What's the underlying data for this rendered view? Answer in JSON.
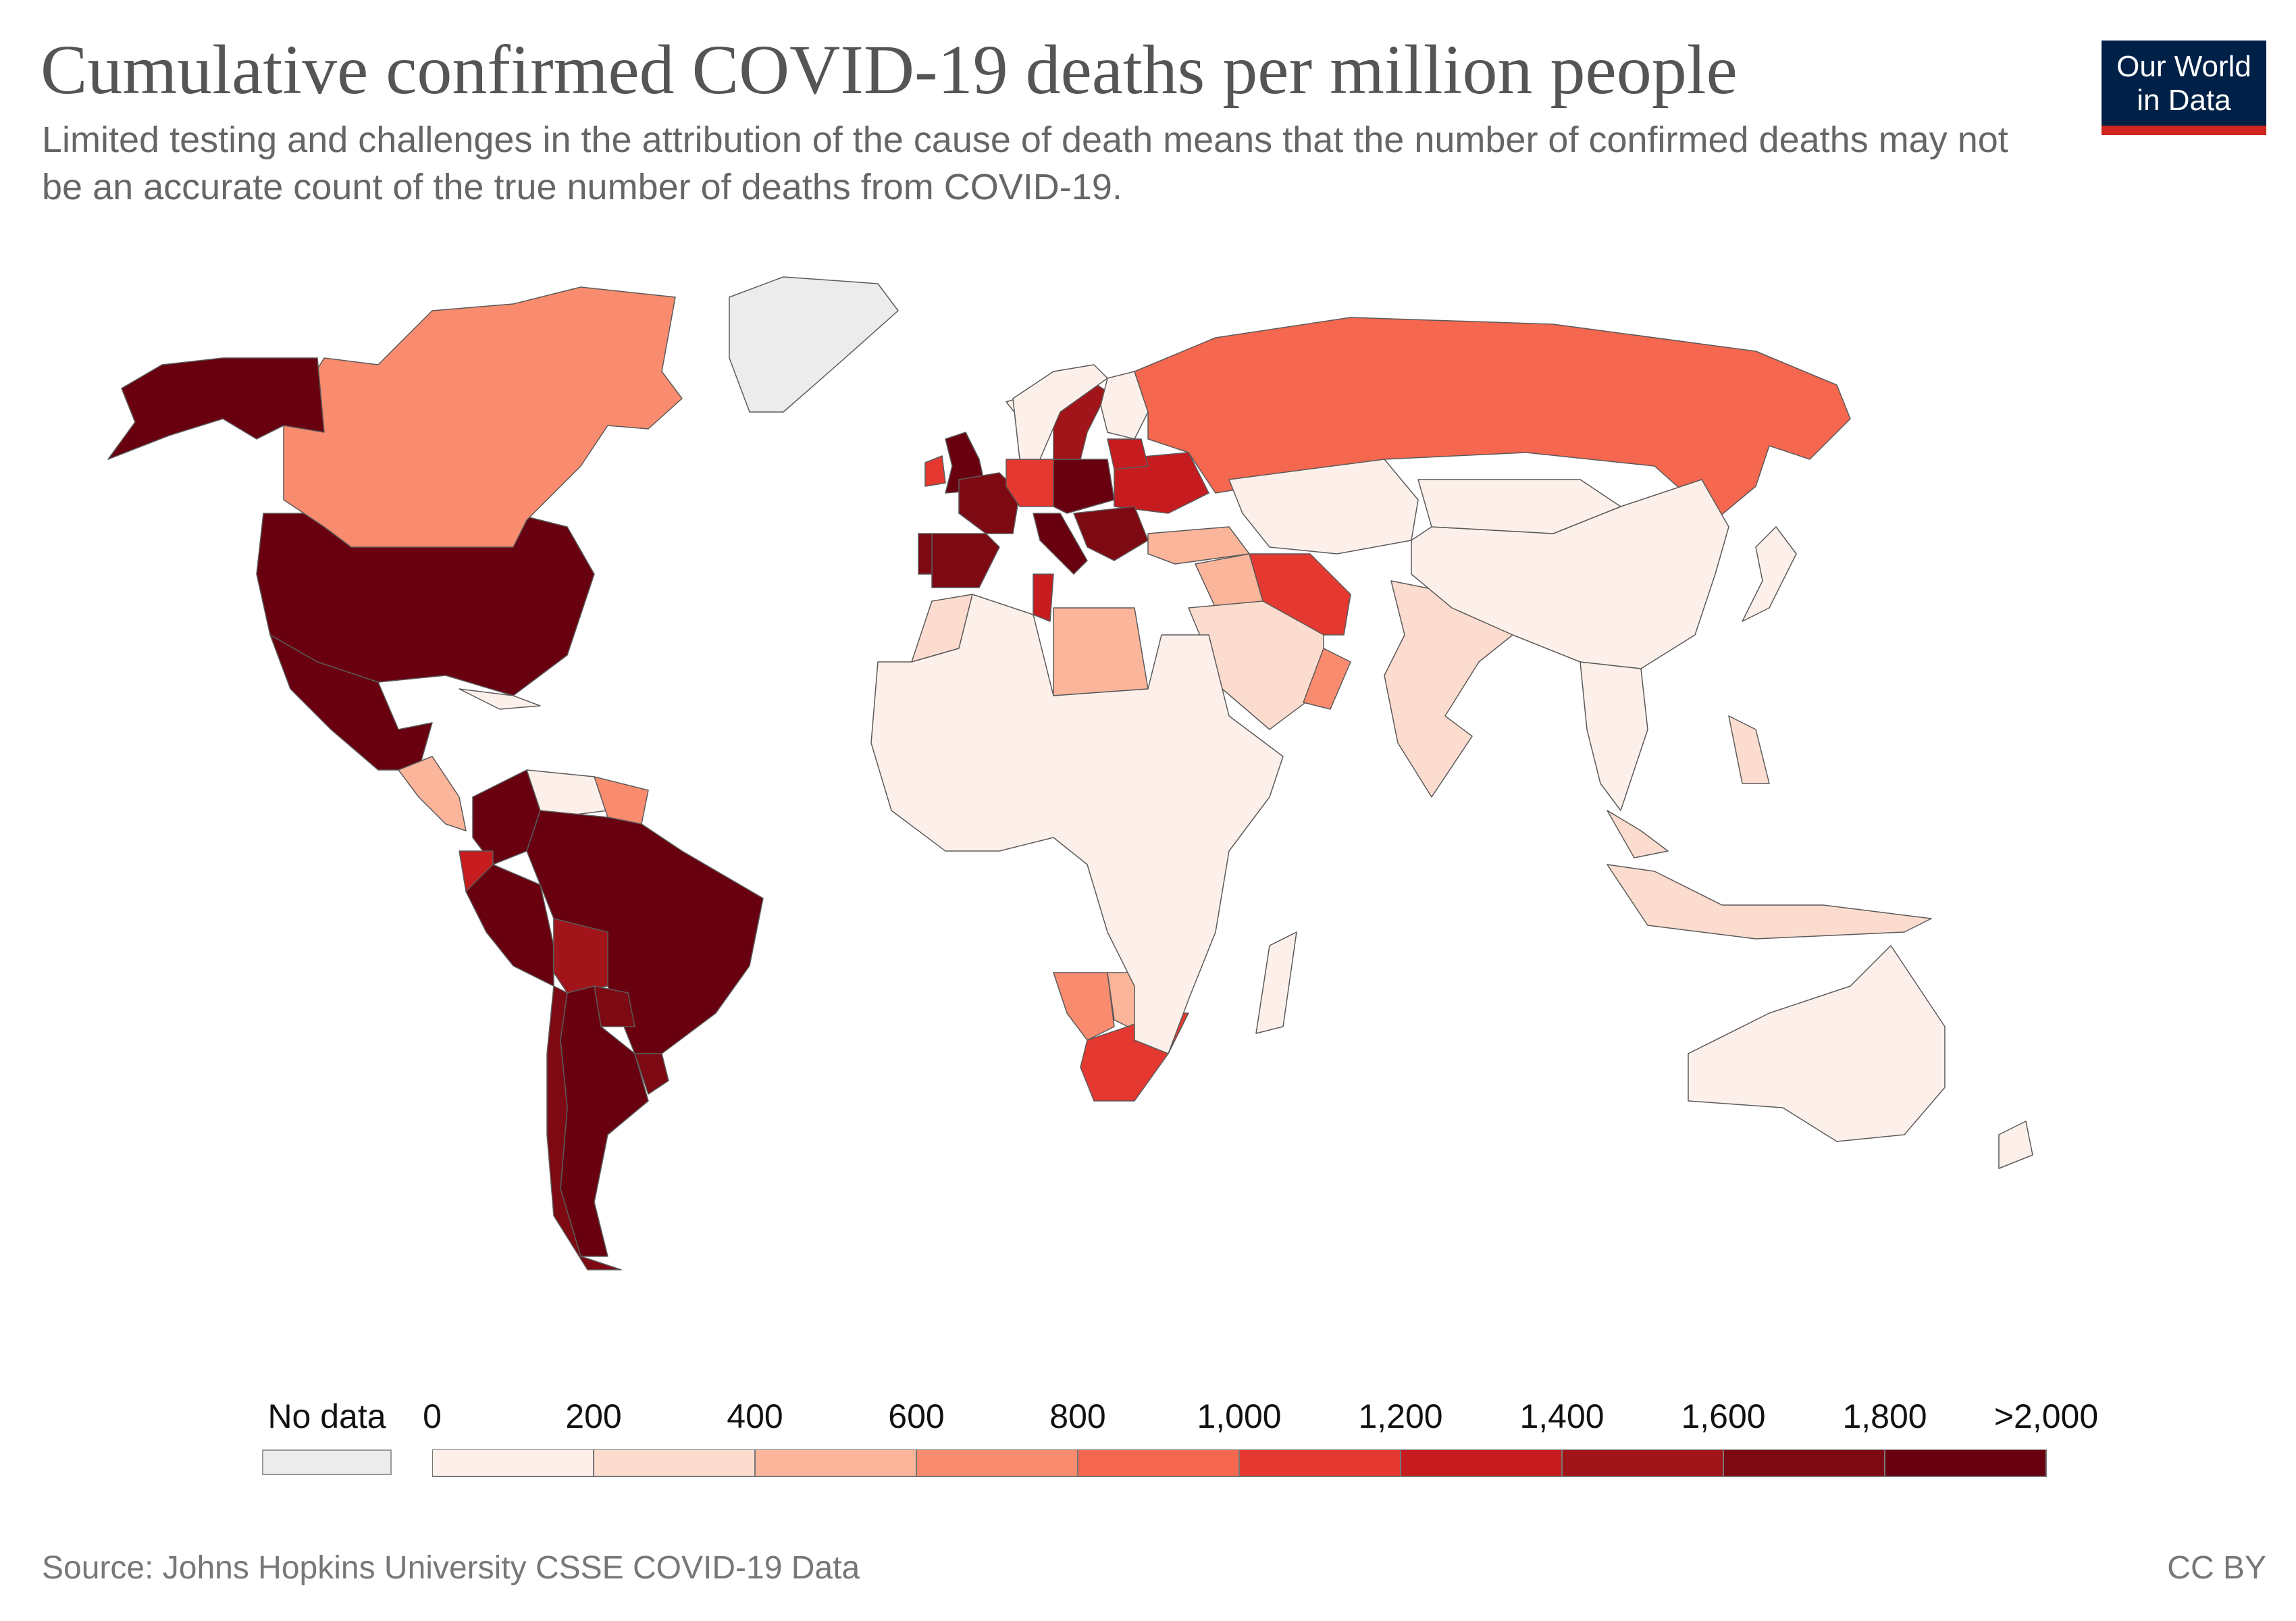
{
  "header": {
    "title": "Cumulative confirmed COVID-19 deaths per million people",
    "subtitle": "Limited testing and challenges in the attribution of the cause of death means that the number of confirmed deaths may not be an accurate count of the true number of deaths from COVID-19."
  },
  "logo": {
    "line1": "Our World",
    "line2": "in Data",
    "bg_color": "#002147",
    "accent_color": "#ce261e"
  },
  "legend": {
    "no_data_label": "No data",
    "no_data_color": "#ececec",
    "tick_labels": [
      "0",
      "200",
      "400",
      "600",
      "800",
      "1,000",
      "1,200",
      "1,400",
      "1,600",
      "1,800",
      ">2,000"
    ],
    "bins": [
      {
        "range": [
          0,
          200
        ],
        "color": "#fdf0ea"
      },
      {
        "range": [
          200,
          400
        ],
        "color": "#fcdcce"
      },
      {
        "range": [
          400,
          600
        ],
        "color": "#fbb59b"
      },
      {
        "range": [
          600,
          800
        ],
        "color": "#f98b6e"
      },
      {
        "range": [
          800,
          1000
        ],
        "color": "#f5674f"
      },
      {
        "range": [
          1000,
          1200
        ],
        "color": "#e43830"
      },
      {
        "range": [
          1200,
          1400
        ],
        "color": "#c61c20"
      },
      {
        "range": [
          1400,
          1600
        ],
        "color": "#a11419"
      },
      {
        "range": [
          1600,
          1800
        ],
        "color": "#7d0912"
      },
      {
        "range": [
          1800,
          2000
        ],
        "color": "#68000f"
      }
    ]
  },
  "chart_data": {
    "type": "choropleth",
    "metric": "Cumulative confirmed COVID-19 deaths per million people",
    "bins": [
      0,
      200,
      400,
      600,
      800,
      1000,
      1200,
      1400,
      1600,
      1800,
      2000
    ],
    "regions": [
      {
        "name": "United States",
        "bin": 9
      },
      {
        "name": "Mexico",
        "bin": 9
      },
      {
        "name": "Canada",
        "bin": 3
      },
      {
        "name": "Alaska",
        "bin": 9
      },
      {
        "name": "Greenland",
        "bin": null
      },
      {
        "name": "Central America",
        "bin": 2
      },
      {
        "name": "Cuba",
        "bin": 0
      },
      {
        "name": "Colombia",
        "bin": 9
      },
      {
        "name": "Venezuela",
        "bin": 0
      },
      {
        "name": "Guyana",
        "bin": 3
      },
      {
        "name": "Ecuador",
        "bin": 6
      },
      {
        "name": "Peru",
        "bin": 9
      },
      {
        "name": "Brazil",
        "bin": 9
      },
      {
        "name": "Bolivia",
        "bin": 7
      },
      {
        "name": "Paraguay",
        "bin": 8
      },
      {
        "name": "Argentina",
        "bin": 9
      },
      {
        "name": "Chile",
        "bin": 8
      },
      {
        "name": "Uruguay",
        "bin": 8
      },
      {
        "name": "United Kingdom",
        "bin": 9
      },
      {
        "name": "Ireland",
        "bin": 5
      },
      {
        "name": "Iceland",
        "bin": 0
      },
      {
        "name": "Spain",
        "bin": 8
      },
      {
        "name": "Portugal",
        "bin": 8
      },
      {
        "name": "France",
        "bin": 8
      },
      {
        "name": "Italy",
        "bin": 9
      },
      {
        "name": "Germany",
        "bin": 5
      },
      {
        "name": "Central Europe",
        "bin": 9
      },
      {
        "name": "Eastern Europe",
        "bin": 6
      },
      {
        "name": "Balkans",
        "bin": 8
      },
      {
        "name": "Sweden",
        "bin": 7
      },
      {
        "name": "Norway",
        "bin": 0
      },
      {
        "name": "Finland",
        "bin": 0
      },
      {
        "name": "Baltics",
        "bin": 6
      },
      {
        "name": "Russia",
        "bin": 4
      },
      {
        "name": "Turkey",
        "bin": 2
      },
      {
        "name": "Iran",
        "bin": 5
      },
      {
        "name": "Iraq",
        "bin": 2
      },
      {
        "name": "Saudi Arabia",
        "bin": 1
      },
      {
        "name": "Oman",
        "bin": 3
      },
      {
        "name": "Tunisia",
        "bin": 6
      },
      {
        "name": "Libya",
        "bin": 2
      },
      {
        "name": "Morocco",
        "bin": 1
      },
      {
        "name": "South Africa",
        "bin": 5
      },
      {
        "name": "Namibia",
        "bin": 3
      },
      {
        "name": "Botswana",
        "bin": 2
      },
      {
        "name": "Africa (rest)",
        "bin": 0
      },
      {
        "name": "India",
        "bin": 1
      },
      {
        "name": "China",
        "bin": 0
      },
      {
        "name": "Southeast Asia",
        "bin": 0
      },
      {
        "name": "Indonesia",
        "bin": 1
      },
      {
        "name": "Philippines",
        "bin": 1
      },
      {
        "name": "Malaysia",
        "bin": 1
      },
      {
        "name": "Australia",
        "bin": 0
      },
      {
        "name": "New Zealand",
        "bin": 0
      },
      {
        "name": "Madagascar",
        "bin": 0
      },
      {
        "name": "Japan",
        "bin": 0
      },
      {
        "name": "Central Asia",
        "bin": 0
      },
      {
        "name": "Mongolia",
        "bin": 0
      }
    ]
  },
  "footer": {
    "source": "Source: Johns Hopkins University CSSE COVID-19 Data",
    "license": "CC BY"
  }
}
